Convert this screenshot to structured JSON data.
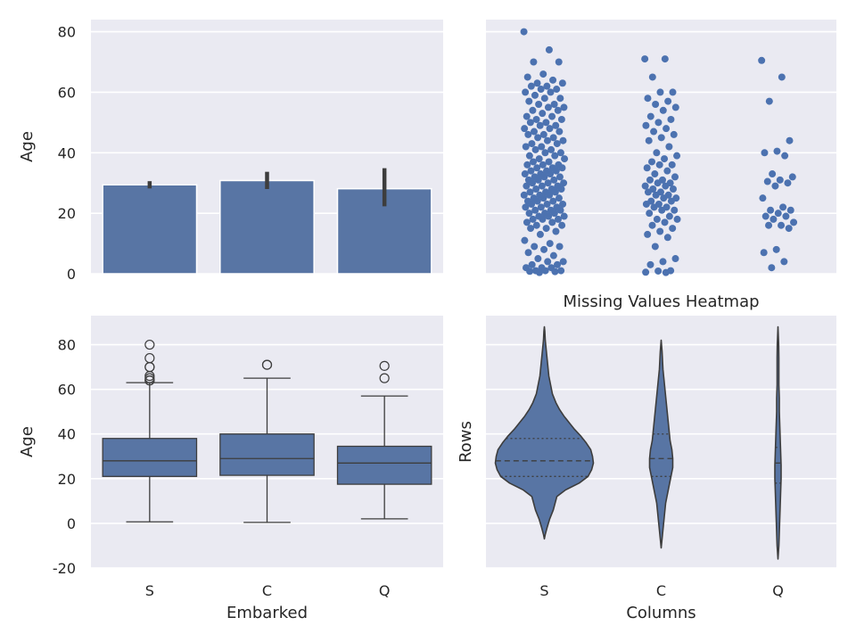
{
  "chart_data": [
    {
      "type": "bar",
      "panel": "top-left",
      "categories": [
        "S",
        "C",
        "Q"
      ],
      "values": [
        29.4,
        30.8,
        28.1
      ],
      "ci_low": [
        28.2,
        28.0,
        22.3
      ],
      "ci_high": [
        30.6,
        33.7,
        34.9
      ],
      "ylabel": "Age",
      "xlabel": "",
      "ylim": [
        0,
        84
      ],
      "yticks": [
        0,
        20,
        40,
        60,
        80
      ],
      "grid": true,
      "color": "#5875a4"
    },
    {
      "type": "scatter",
      "panel": "top-right",
      "style": "strip",
      "categories": [
        "S",
        "C",
        "Q"
      ],
      "series": [
        {
          "category": "S",
          "values": [
            80,
            74,
            70,
            70,
            66,
            65,
            64,
            63,
            63,
            62,
            62,
            61,
            61,
            60,
            60,
            59,
            58,
            58,
            57,
            56,
            56,
            55,
            55,
            54,
            54,
            53,
            52,
            52,
            51,
            51,
            50,
            50,
            49,
            49,
            48,
            48,
            47,
            47,
            46,
            46,
            45,
            45,
            44,
            44,
            43,
            43,
            42,
            42,
            41,
            41,
            40,
            40,
            39,
            39,
            38,
            38,
            37,
            37,
            36,
            36,
            36,
            35,
            35,
            35,
            34,
            34,
            34,
            33,
            33,
            33,
            32,
            32,
            32,
            31,
            31,
            31,
            30,
            30,
            30,
            29,
            29,
            29,
            28,
            28,
            28,
            27,
            27,
            27,
            26,
            26,
            26,
            25,
            25,
            25,
            24,
            24,
            24,
            23,
            23,
            23,
            22,
            22,
            22,
            21,
            21,
            21,
            20,
            20,
            20,
            19,
            19,
            19,
            18,
            18,
            18,
            17,
            17,
            16,
            16,
            15,
            15,
            14,
            13,
            11,
            10,
            9,
            9,
            8,
            7,
            6,
            5,
            4,
            4,
            3,
            3,
            2,
            2,
            2,
            1,
            1,
            1,
            0.8,
            0.7,
            0.4
          ]
        },
        {
          "category": "C",
          "values": [
            71,
            71,
            65,
            60,
            60,
            58,
            57,
            56,
            55,
            54,
            52,
            51,
            50,
            49,
            48,
            47,
            46,
            45,
            44,
            42,
            40,
            39,
            38,
            37,
            36,
            36,
            35,
            34,
            33,
            32,
            31,
            31,
            30,
            30,
            29,
            29,
            28,
            28,
            27,
            27,
            26,
            26,
            25,
            25,
            24,
            24,
            23,
            23,
            22,
            22,
            21,
            21,
            20,
            19,
            18,
            18,
            17,
            16,
            15,
            14,
            13,
            12,
            9,
            5,
            4,
            3,
            1,
            0.9,
            0.5,
            0.4
          ]
        },
        {
          "category": "Q",
          "values": [
            70.5,
            65,
            57,
            44,
            40.5,
            40,
            39,
            33,
            32,
            31,
            30.5,
            30,
            29,
            25,
            22,
            21,
            21,
            20,
            19,
            19,
            18,
            17,
            16,
            16,
            15,
            8,
            7,
            4,
            2
          ]
        }
      ],
      "ylim": [
        0,
        84
      ],
      "grid": true,
      "color": "#4c72b0"
    },
    {
      "type": "box",
      "panel": "bottom-left",
      "categories": [
        "S",
        "C",
        "Q"
      ],
      "boxes": [
        {
          "category": "S",
          "whisker_low": 0.67,
          "q1": 21,
          "median": 28,
          "q3": 38,
          "whisker_high": 63,
          "fliers": [
            80,
            74,
            70,
            70,
            66,
            65,
            64,
            64
          ]
        },
        {
          "category": "C",
          "whisker_low": 0.42,
          "q1": 21.5,
          "median": 29,
          "q3": 40,
          "whisker_high": 65,
          "fliers": [
            71,
            71
          ]
        },
        {
          "category": "Q",
          "whisker_low": 2,
          "q1": 17.5,
          "median": 27,
          "q3": 34.5,
          "whisker_high": 57,
          "fliers": [
            70.5,
            65
          ]
        }
      ],
      "ylabel": "Age",
      "xlabel": "Embarked",
      "ylim": [
        -20,
        93
      ],
      "yticks": [
        -20,
        0,
        20,
        40,
        60,
        80
      ],
      "grid": true,
      "color": "#5875a4"
    },
    {
      "type": "violin",
      "panel": "bottom-right",
      "title": "Missing Values Heatmap",
      "categories": [
        "S",
        "C",
        "Q"
      ],
      "violins": [
        {
          "category": "S",
          "min": -7,
          "max": 88,
          "q1": 21,
          "median": 28,
          "q3": 38,
          "profile": [
            [
              -7,
              0
            ],
            [
              -5,
              1
            ],
            [
              -2,
              3
            ],
            [
              2,
              6
            ],
            [
              6,
              10
            ],
            [
              9,
              12
            ],
            [
              12,
              14
            ],
            [
              15,
              24
            ],
            [
              18,
              39
            ],
            [
              21,
              49
            ],
            [
              24,
              53
            ],
            [
              27,
              55
            ],
            [
              30,
              54
            ],
            [
              33,
              52
            ],
            [
              36,
              47
            ],
            [
              39,
              41
            ],
            [
              42,
              34
            ],
            [
              45,
              28
            ],
            [
              48,
              22
            ],
            [
              51,
              17
            ],
            [
              54,
              13
            ],
            [
              58,
              9
            ],
            [
              62,
              7
            ],
            [
              66,
              5
            ],
            [
              70,
              4
            ],
            [
              74,
              3
            ],
            [
              78,
              2
            ],
            [
              82,
              1
            ],
            [
              86,
              0.5
            ],
            [
              88,
              0
            ]
          ]
        },
        {
          "category": "C",
          "min": -11,
          "max": 82,
          "q1": 21,
          "median": 29,
          "q3": 40,
          "profile": [
            [
              -11,
              0
            ],
            [
              -7,
              1
            ],
            [
              -3,
              2
            ],
            [
              1,
              3
            ],
            [
              5,
              4
            ],
            [
              9,
              5
            ],
            [
              13,
              7
            ],
            [
              17,
              9
            ],
            [
              21,
              11
            ],
            [
              25,
              13
            ],
            [
              29,
              13
            ],
            [
              33,
              12
            ],
            [
              37,
              10
            ],
            [
              41,
              9
            ],
            [
              45,
              8
            ],
            [
              49,
              7
            ],
            [
              53,
              6
            ],
            [
              57,
              5
            ],
            [
              61,
              4
            ],
            [
              65,
              3
            ],
            [
              69,
              2
            ],
            [
              73,
              1.5
            ],
            [
              77,
              1
            ],
            [
              82,
              0
            ]
          ]
        },
        {
          "category": "Q",
          "min": -16,
          "max": 88,
          "q1": 18,
          "median": 27,
          "q3": 34,
          "profile": [
            [
              -16,
              0
            ],
            [
              -10,
              1
            ],
            [
              -4,
              1.5
            ],
            [
              2,
              2
            ],
            [
              8,
              2.5
            ],
            [
              14,
              3
            ],
            [
              20,
              3.5
            ],
            [
              26,
              3.5
            ],
            [
              32,
              3
            ],
            [
              38,
              2.5
            ],
            [
              44,
              2
            ],
            [
              50,
              1.5
            ],
            [
              56,
              1.5
            ],
            [
              62,
              1
            ],
            [
              68,
              1
            ],
            [
              74,
              1
            ],
            [
              80,
              0.8
            ],
            [
              88,
              0
            ]
          ]
        }
      ],
      "ylabel": "Rows",
      "xlabel": "Columns",
      "ylim": [
        -20,
        93
      ],
      "grid": true,
      "color": "#5875a4"
    }
  ]
}
